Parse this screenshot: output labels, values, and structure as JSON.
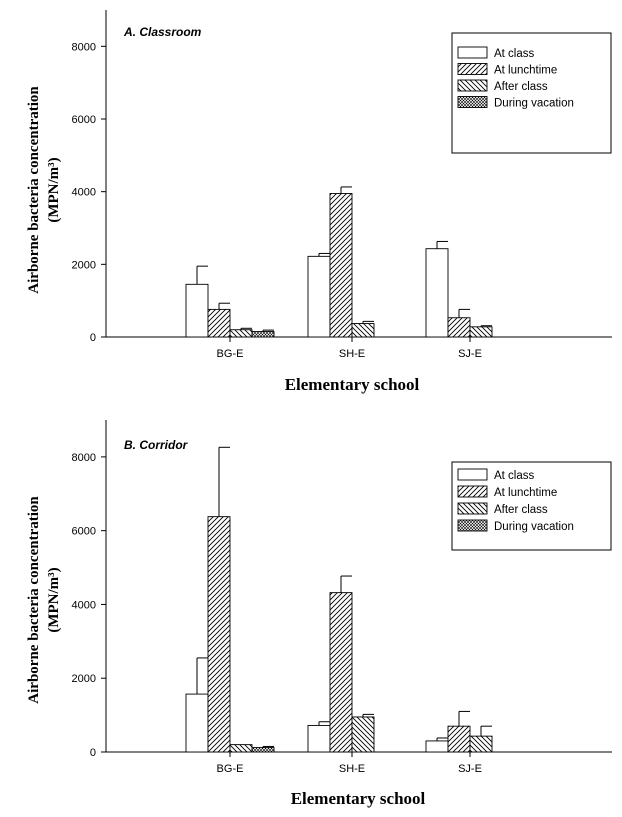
{
  "chart_data": [
    {
      "type": "bar",
      "title": "A. Classroom",
      "xlabel": "Elementary school",
      "ylabel_line1": "Airborne bacteria concentration",
      "ylabel_line2": "(MPN/m³)",
      "ylim": [
        0,
        9000
      ],
      "yticks": [
        "0",
        "2000",
        "4000",
        "6000",
        "8000"
      ],
      "categories": [
        "BG-E",
        "SH-E",
        "SJ-E"
      ],
      "series": [
        {
          "name": "At class",
          "values": [
            1450,
            2220,
            2430
          ],
          "errors": [
            500,
            80,
            200
          ]
        },
        {
          "name": "At lunchtime",
          "values": [
            760,
            3950,
            530
          ],
          "errors": [
            170,
            180,
            230
          ]
        },
        {
          "name": "After class",
          "values": [
            200,
            370,
            280
          ],
          "errors": [
            40,
            60,
            30
          ]
        },
        {
          "name": "During vacation",
          "values": [
            150,
            0,
            0
          ],
          "errors": [
            40,
            0,
            0
          ]
        }
      ],
      "legend_position": "top-right",
      "grid": false
    },
    {
      "type": "bar",
      "title": "B. Corridor",
      "xlabel": "Elementary school",
      "ylabel_line1": "Airborne bacteria concentration",
      "ylabel_line2": "(MPN/m³)",
      "ylim": [
        0,
        9000
      ],
      "yticks": [
        "0",
        "2000",
        "4000",
        "6000",
        "8000"
      ],
      "categories": [
        "BG-E",
        "SH-E",
        "SJ-E"
      ],
      "series": [
        {
          "name": "At class",
          "values": [
            1570,
            720,
            300
          ],
          "errors": [
            980,
            100,
            80
          ]
        },
        {
          "name": "At lunchtime",
          "values": [
            6380,
            4320,
            700
          ],
          "errors": [
            1880,
            450,
            400
          ]
        },
        {
          "name": "After class",
          "values": [
            200,
            950,
            430
          ],
          "errors": [
            0,
            70,
            270
          ]
        },
        {
          "name": "During vacation",
          "values": [
            120,
            0,
            0
          ],
          "errors": [
            30,
            0,
            0
          ]
        }
      ],
      "legend_position": "top-right",
      "grid": false
    }
  ]
}
